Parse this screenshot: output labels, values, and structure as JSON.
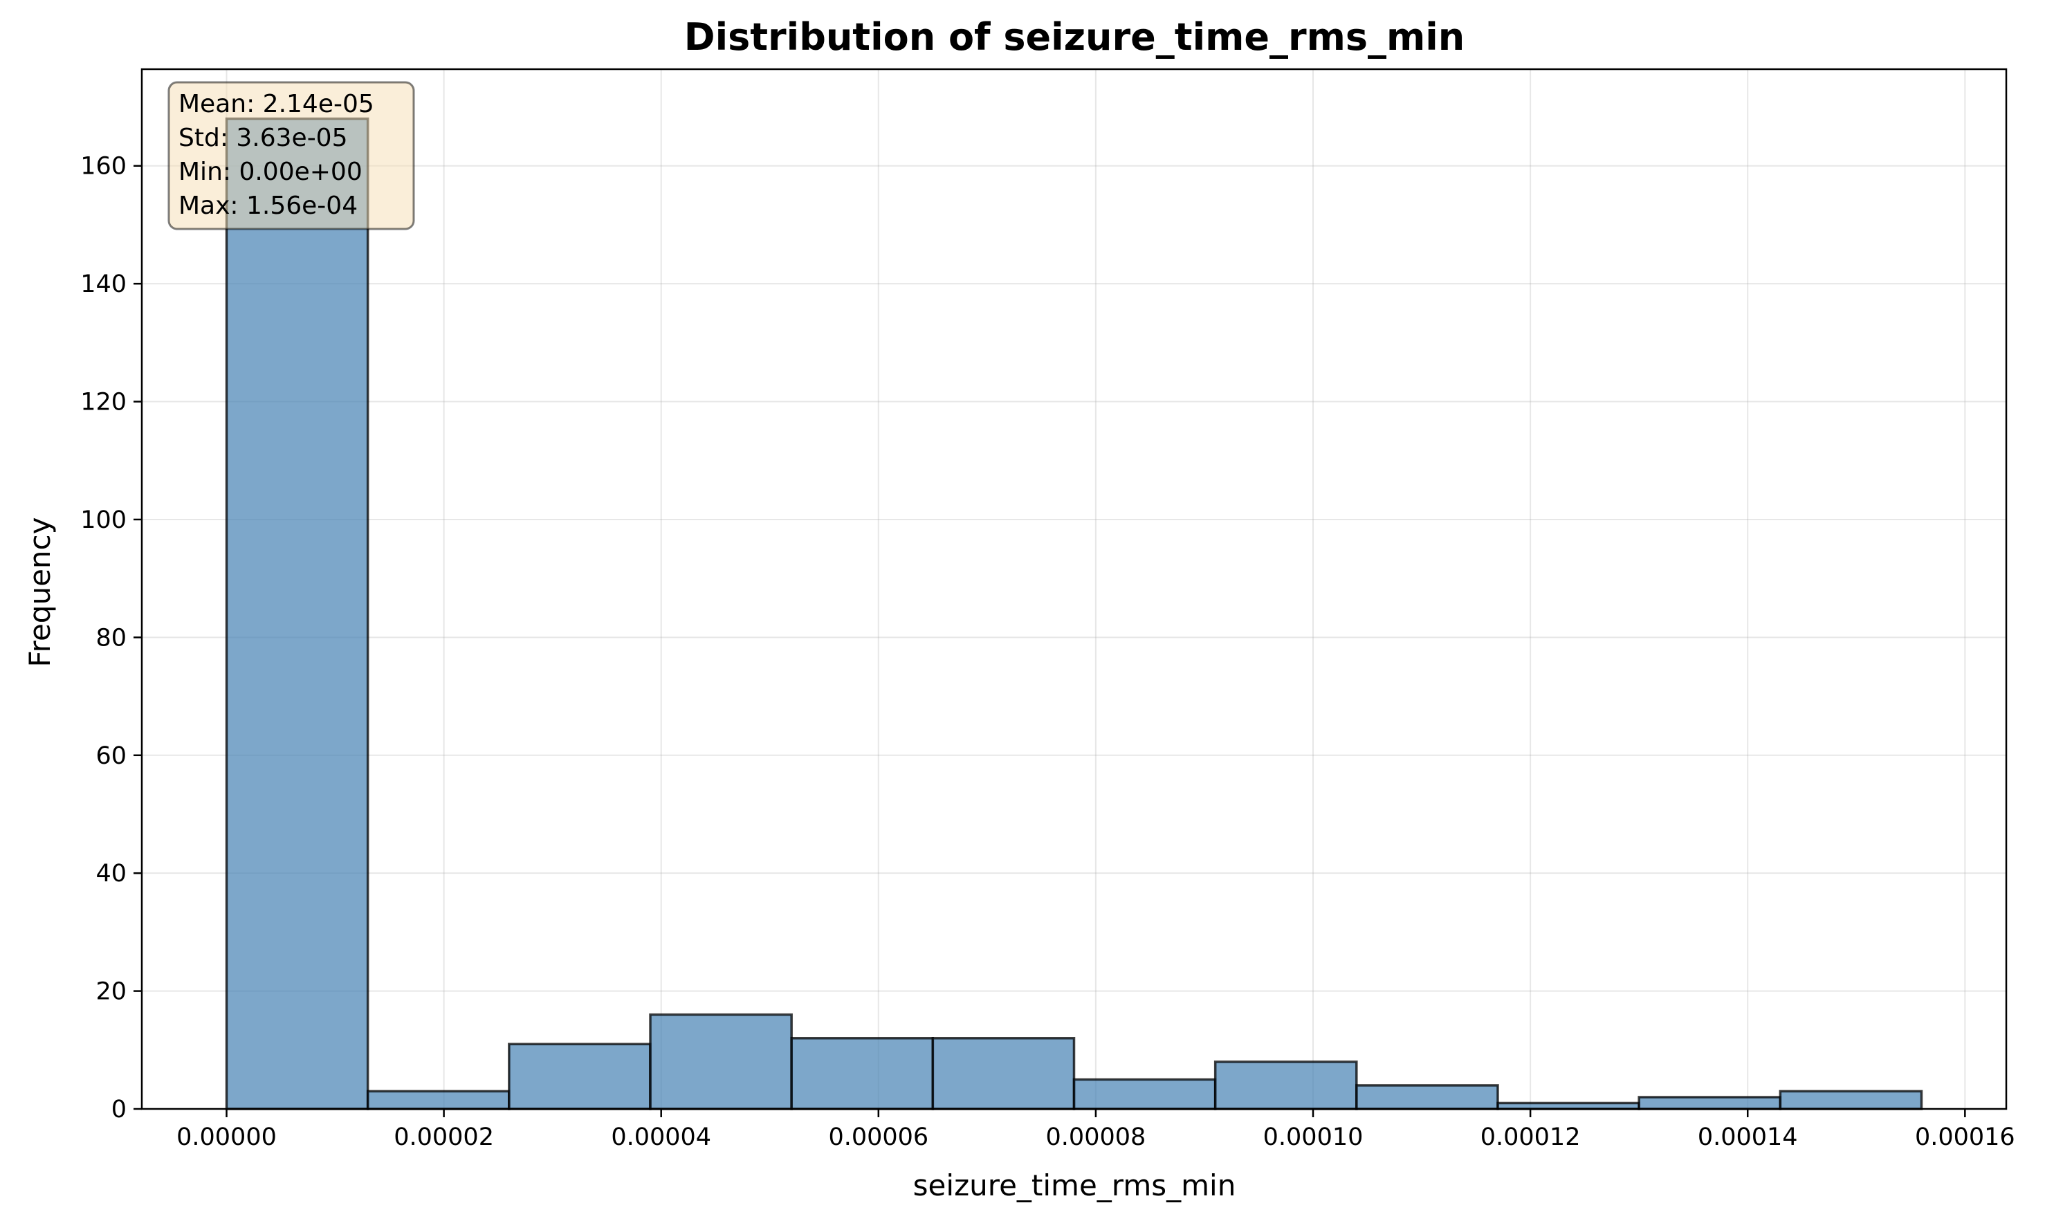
{
  "chart_data": {
    "type": "bar",
    "title": "Distribution of seizure_time_rms_min",
    "xlabel": "seizure_time_rms_min",
    "ylabel": "Frequency",
    "xlim": [
      -7.8e-06,
      0.0001638
    ],
    "ylim": [
      0,
      176.4
    ],
    "grid": true,
    "bar_color": "#4682b4",
    "stats_box": {
      "lines": [
        "Mean: 2.14e-05",
        "Std: 3.63e-05",
        "Min: 0.00e+00",
        "Max: 1.56e-04"
      ],
      "background": "#f5deb3",
      "position": "top-left"
    },
    "bins": [
      {
        "start": 0.0,
        "end": 1.3e-05,
        "count": 168
      },
      {
        "start": 1.3e-05,
        "end": 2.6e-05,
        "count": 3
      },
      {
        "start": 2.6e-05,
        "end": 3.9e-05,
        "count": 11
      },
      {
        "start": 3.9e-05,
        "end": 5.2e-05,
        "count": 16
      },
      {
        "start": 5.2e-05,
        "end": 6.5e-05,
        "count": 12
      },
      {
        "start": 6.5e-05,
        "end": 7.8e-05,
        "count": 12
      },
      {
        "start": 7.8e-05,
        "end": 9.1e-05,
        "count": 5
      },
      {
        "start": 9.1e-05,
        "end": 0.000104,
        "count": 8
      },
      {
        "start": 0.000104,
        "end": 0.000117,
        "count": 4
      },
      {
        "start": 0.000117,
        "end": 0.00013,
        "count": 1
      },
      {
        "start": 0.00013,
        "end": 0.000143,
        "count": 2
      },
      {
        "start": 0.000143,
        "end": 0.000156,
        "count": 3
      }
    ],
    "x_ticks": [
      {
        "value": 0.0,
        "label": "0.00000"
      },
      {
        "value": 2e-05,
        "label": "0.00002"
      },
      {
        "value": 4e-05,
        "label": "0.00004"
      },
      {
        "value": 6e-05,
        "label": "0.00006"
      },
      {
        "value": 8e-05,
        "label": "0.00008"
      },
      {
        "value": 0.0001,
        "label": "0.00010"
      },
      {
        "value": 0.00012,
        "label": "0.00012"
      },
      {
        "value": 0.00014,
        "label": "0.00014"
      },
      {
        "value": 0.00016,
        "label": "0.00016"
      }
    ],
    "y_ticks": [
      {
        "value": 0,
        "label": "0"
      },
      {
        "value": 20,
        "label": "20"
      },
      {
        "value": 40,
        "label": "40"
      },
      {
        "value": 60,
        "label": "60"
      },
      {
        "value": 80,
        "label": "80"
      },
      {
        "value": 100,
        "label": "100"
      },
      {
        "value": 120,
        "label": "120"
      },
      {
        "value": 140,
        "label": "140"
      },
      {
        "value": 160,
        "label": "160"
      }
    ]
  }
}
